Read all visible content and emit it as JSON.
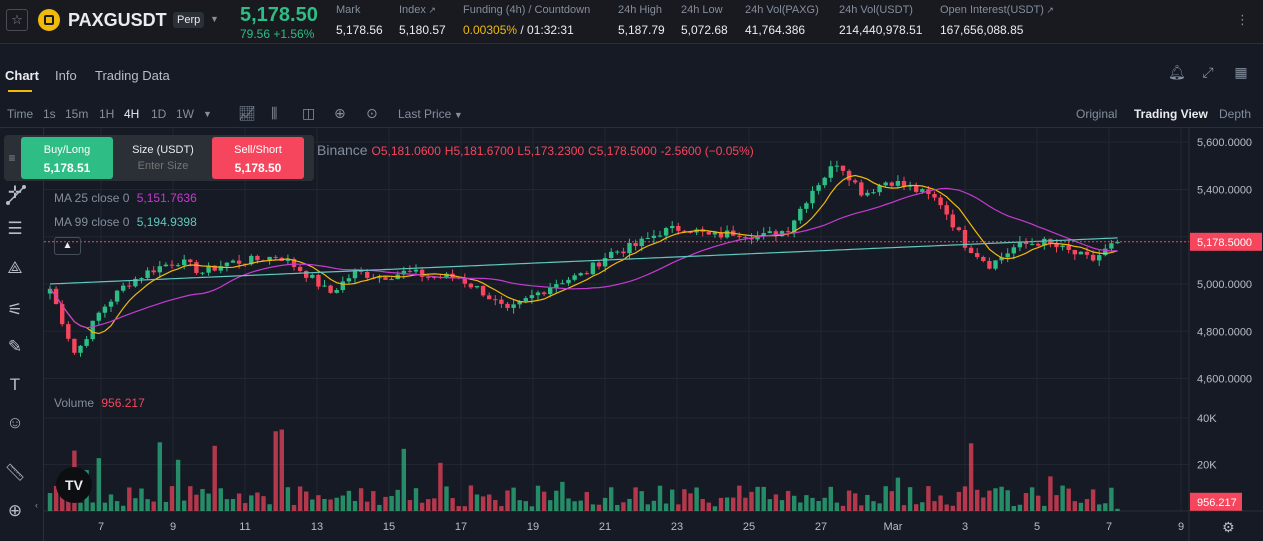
{
  "header": {
    "symbol": "PAXGUSDT",
    "contract_badge": "Perp",
    "last_price": "5,178.50",
    "change": "79.56 +1.56%",
    "stats": [
      {
        "label": "Mark",
        "value": "5,178.56"
      },
      {
        "label": "Index",
        "value": "5,180.57"
      },
      {
        "label": "Funding (4h) / Countdown",
        "value_funding": "0.00305%",
        "value_countdown": "/ 01:32:31"
      },
      {
        "label": "24h High",
        "value": "5,187.79"
      },
      {
        "label": "24h Low",
        "value": "5,072.68"
      },
      {
        "label": "24h Vol(PAXG)",
        "value": "41,764.386"
      },
      {
        "label": "24h Vol(USDT)",
        "value": "214,440,978.51"
      },
      {
        "label": "Open Interest(USDT)",
        "value": "167,656,088.85"
      }
    ]
  },
  "tabs": [
    "Chart",
    "Info",
    "Trading Data"
  ],
  "toolbar": {
    "intervals": [
      "Time",
      "1s",
      "15m",
      "1H",
      "4H",
      "1D",
      "1W"
    ],
    "active_interval": "4H",
    "price_type": "Last Price",
    "views": [
      "Original",
      "Trading View",
      "Depth"
    ],
    "active_view": "Trading View"
  },
  "trade_panel": {
    "buy_label": "Buy/Long",
    "buy_price": "5,178.51",
    "size_label": "Size (USDT)",
    "size_placeholder": "Enter Size",
    "sell_label": "Sell/Short",
    "sell_price": "5,178.50"
  },
  "ohlc": {
    "source": "Binance",
    "open": "O5,181.0600",
    "high": "H5,181.6700",
    "low": "L5,173.2300",
    "close": "C5,178.5000",
    "change": "-2.5600 (−0.05%)"
  },
  "indicators": {
    "ma25_label": "MA 25 close 0",
    "ma25_value": "5,151.7636",
    "ma99_label": "MA 99 close 0",
    "ma99_value": "5,194.9398",
    "volume_label": "Volume",
    "volume_value": "956.217"
  },
  "colors": {
    "up": "#2ebd85",
    "down": "#f6465d",
    "ma7": "#f0b90b",
    "ma25": "#c43bd0",
    "ma99": "#5fc9c0",
    "accent": "#f0b90b"
  },
  "chart_data": {
    "type": "candlestick",
    "price_axis_ticks": [
      "5,600.0000",
      "5,400.0000",
      "5,200.0000",
      "5,000.0000",
      "4,800.0000",
      "4,600.0000"
    ],
    "volume_axis_ticks": [
      "40K",
      "20K"
    ],
    "x_ticks": [
      "7",
      "9",
      "11",
      "13",
      "15",
      "17",
      "19",
      "21",
      "23",
      "25",
      "27",
      "Mar",
      "3",
      "5",
      "7",
      "9"
    ],
    "current_price_label": "5,178.5000",
    "current_volume_label": "956.217",
    "price_range": [
      4560,
      5660
    ],
    "volume_range": [
      0,
      52000
    ],
    "current_price": 5178.5,
    "current_volume": 956.217,
    "price_keypoints": [
      4980,
      4700,
      4890,
      5000,
      5060,
      5100,
      5050,
      5090,
      5100,
      5120,
      5050,
      4960,
      5050,
      5030,
      5050,
      5030,
      5030,
      4970,
      4880,
      4950,
      5010,
      5040,
      5130,
      5160,
      5220,
      5240,
      5200,
      5220,
      5200,
      5230,
      5400,
      5520,
      5380,
      5440,
      5400,
      5350,
      5170,
      5080,
      5160,
      5180,
      5140,
      5100,
      5180
    ],
    "ma99_start": 5000,
    "ma99_end": 5195
  }
}
